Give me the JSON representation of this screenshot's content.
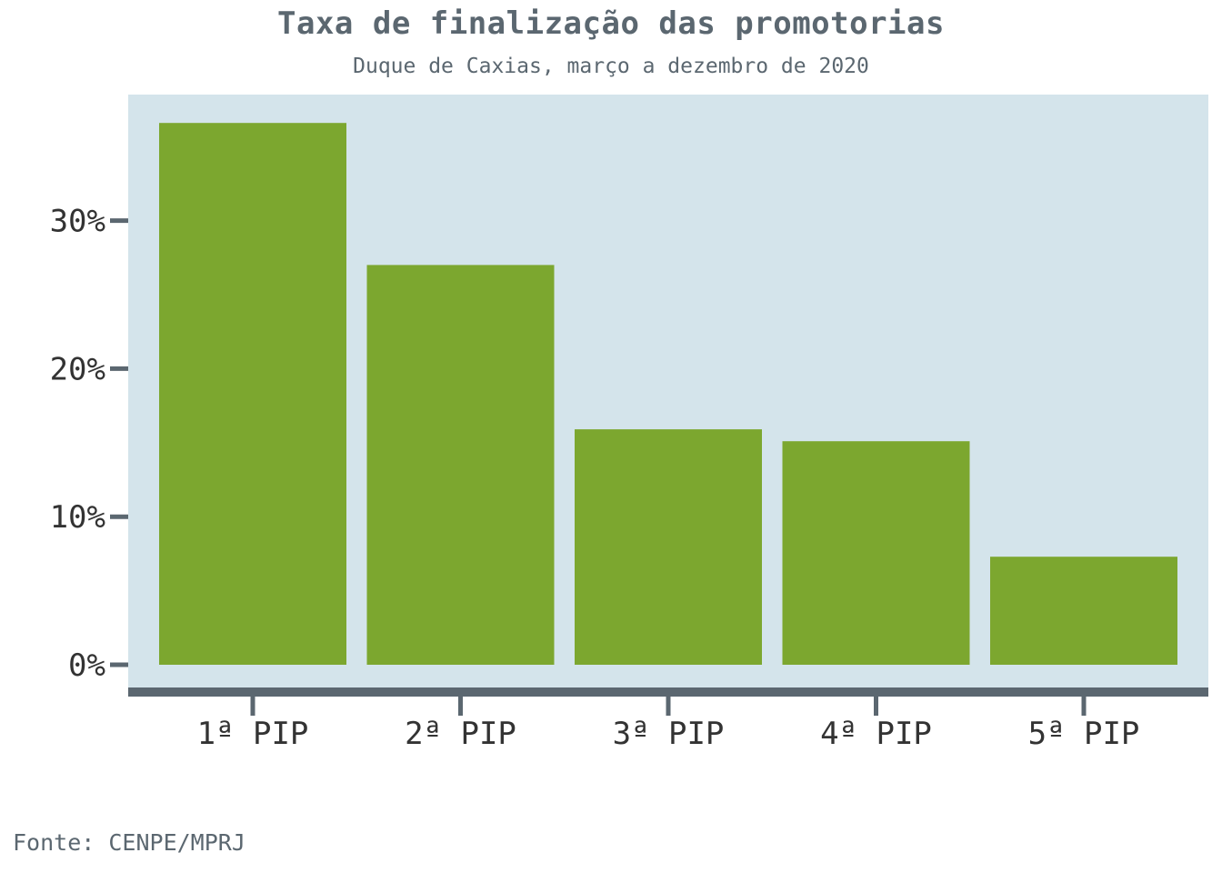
{
  "chart_data": {
    "type": "bar",
    "title": "Taxa de finalização das promotorias",
    "subtitle": "Duque de Caxias, março a dezembro de 2020",
    "categories": [
      "1ª PIP",
      "2ª PIP",
      "3ª PIP",
      "4ª PIP",
      "5ª PIP"
    ],
    "values": [
      36.6,
      27.0,
      15.9,
      15.1,
      7.3
    ],
    "unit": "%",
    "xlabel": "",
    "ylabel": "",
    "ylim": [
      0,
      38
    ],
    "yticks": [
      0,
      10,
      20,
      30
    ],
    "ytick_labels": [
      "0%",
      "10%",
      "20%",
      "30%"
    ],
    "grid": false,
    "legend": "none",
    "source": "Fonte: CENPE/MPRJ",
    "colors": {
      "bar": "#7ca72f",
      "panel_background": "#d4e4eb",
      "axis": "#5b6770",
      "tick_text": "#333333",
      "title_text": "#5b6770"
    }
  }
}
